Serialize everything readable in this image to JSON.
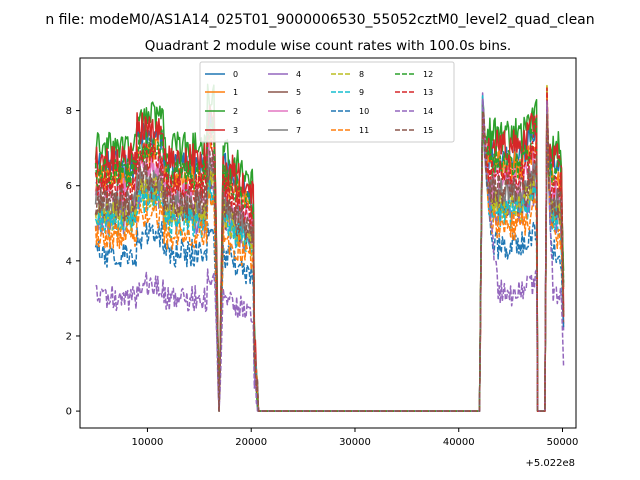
{
  "chart_data": {
    "type": "line",
    "suptitle": "n file: modeM0/AS1A14_025T01_9000006530_55052cztM0_level2_quad_clean",
    "title": "Quadrant 2 module wise count rates with 100.0s bins.",
    "xlabel": "",
    "ylabel": "",
    "x_offset_label": "+5.022e8",
    "xlim": [
      3500,
      51300
    ],
    "ylim": [
      -0.45,
      9.4
    ],
    "xticks": [
      10000,
      20000,
      30000,
      40000,
      50000
    ],
    "xtick_labels": [
      "10000",
      "20000",
      "30000",
      "40000",
      "50000"
    ],
    "yticks": [
      0,
      2,
      4,
      6,
      8
    ],
    "ytick_labels": [
      "0",
      "2",
      "4",
      "6",
      "8"
    ],
    "segments": [
      {
        "start": 5000,
        "end": 16500
      },
      {
        "start": 17300,
        "end": 20200
      },
      {
        "start": 42200,
        "end": 47500
      },
      {
        "start": 48300,
        "end": 50100
      }
    ],
    "series": [
      {
        "name": "0",
        "base": 6.5,
        "color": "#1f77b4",
        "dash": ""
      },
      {
        "name": "1",
        "base": 6.2,
        "color": "#ff7f0e",
        "dash": ""
      },
      {
        "name": "2",
        "base": 7.0,
        "color": "#2ca02c",
        "dash": ""
      },
      {
        "name": "3",
        "base": 6.7,
        "color": "#d62728",
        "dash": ""
      },
      {
        "name": "4",
        "base": 5.1,
        "color": "#9467bd",
        "dash": ""
      },
      {
        "name": "5",
        "base": 5.3,
        "color": "#8c564b",
        "dash": ""
      },
      {
        "name": "6",
        "base": 5.8,
        "color": "#e377c2",
        "dash": ""
      },
      {
        "name": "7",
        "base": 5.5,
        "color": "#7f7f7f",
        "dash": ""
      },
      {
        "name": "8",
        "base": 5.2,
        "color": "#bcbd22",
        "dash": "5,2"
      },
      {
        "name": "9",
        "base": 5.0,
        "color": "#17becf",
        "dash": "5,2"
      },
      {
        "name": "10",
        "base": 4.2,
        "color": "#1f77b4",
        "dash": "5,2"
      },
      {
        "name": "11",
        "base": 4.7,
        "color": "#ff7f0e",
        "dash": "5,2"
      },
      {
        "name": "12",
        "base": 6.3,
        "color": "#2ca02c",
        "dash": "5,2"
      },
      {
        "name": "13",
        "base": 6.0,
        "color": "#d62728",
        "dash": "5,2"
      },
      {
        "name": "14",
        "base": 3.0,
        "color": "#9467bd",
        "dash": "5,2"
      },
      {
        "name": "15",
        "base": 5.6,
        "color": "#8c564b",
        "dash": "5,2"
      }
    ],
    "legend": {
      "location": "upper center",
      "columns": 4
    }
  }
}
